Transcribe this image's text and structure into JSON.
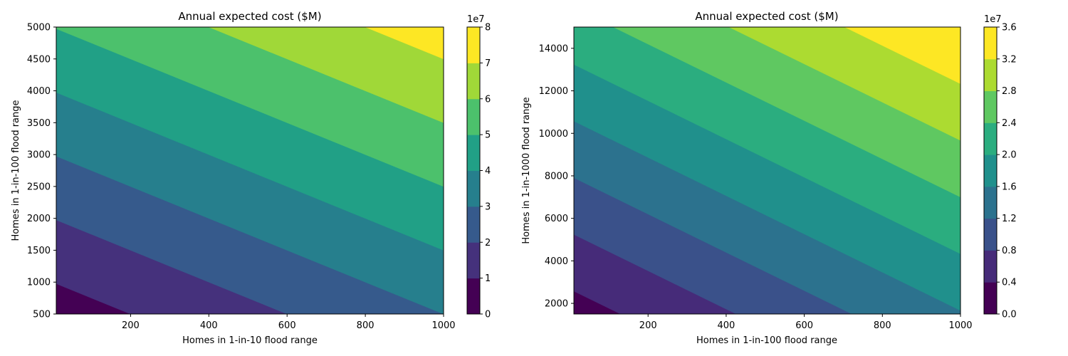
{
  "chart_data": [
    {
      "type": "contour",
      "title": "Annual expected cost ($M)",
      "xlabel": "Homes in 1-in-10 flood range",
      "ylabel": "Homes in 1-in-100 flood range",
      "xlim": [
        10,
        1000
      ],
      "ylim": [
        500,
        5000
      ],
      "xticks": [
        200,
        400,
        600,
        800,
        1000
      ],
      "yticks": [
        500,
        1000,
        1500,
        2000,
        2500,
        3000,
        3500,
        4000,
        4500,
        5000
      ],
      "colorbar": {
        "levels": [
          0,
          1,
          2,
          3,
          4,
          5,
          6,
          7,
          8
        ],
        "offset_label": "1e7",
        "colormap": "viridis"
      },
      "model": {
        "a": 25000,
        "b": 10000,
        "c": 0
      }
    },
    {
      "type": "contour",
      "title": "Annual expected cost ($M)",
      "xlabel": "Homes in 1-in-100 flood range",
      "ylabel": "Homes in 1-in-1000 flood range",
      "xlim": [
        10,
        1000
      ],
      "ylim": [
        1500,
        15000
      ],
      "xticks": [
        200,
        400,
        600,
        800,
        1000
      ],
      "yticks": [
        2000,
        4000,
        6000,
        8000,
        10000,
        12000,
        14000
      ],
      "colorbar": {
        "levels": [
          0.0,
          0.4,
          0.8,
          1.2,
          1.6,
          2.0,
          2.4,
          2.8,
          3.2,
          3.6
        ],
        "offset_label": "1e7",
        "colormap": "viridis"
      },
      "model": {
        "a": 13500,
        "b": 1500,
        "c": 0
      }
    }
  ]
}
